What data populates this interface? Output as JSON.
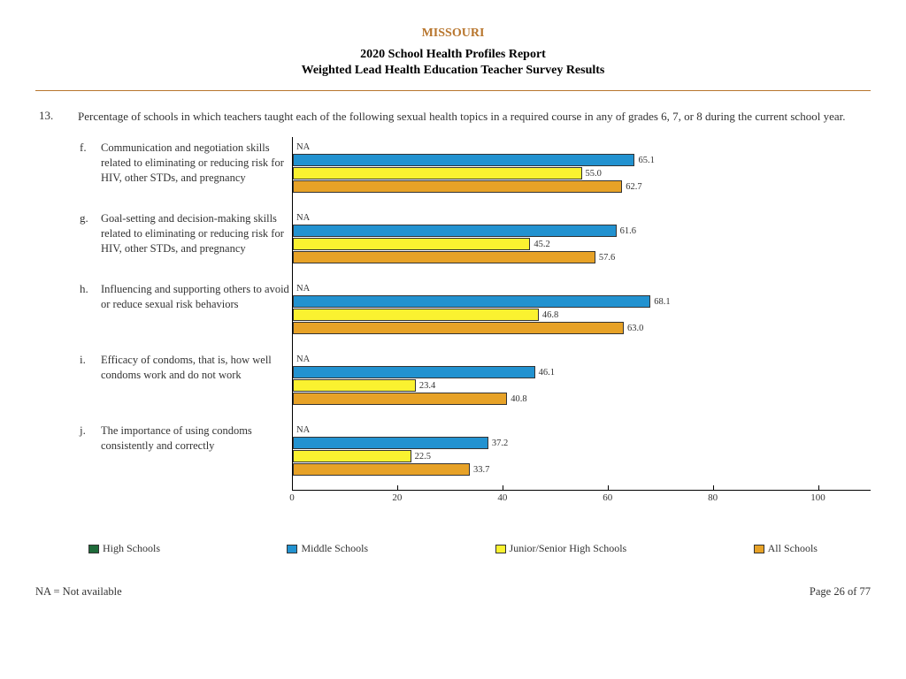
{
  "state": "MISSOURI",
  "state_color": "#b8762e",
  "report_title": "2020 School Health Profiles Report",
  "subtitle": "Weighted Lead Health Education Teacher Survey Results",
  "divider_color": "#b8762e",
  "question_number": "13.",
  "question_text": "Percentage of schools in which teachers taught each of the following sexual health topics in a required course in any of grades 6, 7, or 8 during the current school year.",
  "na_text": "NA",
  "footnote": "NA = Not available",
  "page_label": "Page 26 of 77",
  "scale_max": 110,
  "ticks": [
    0,
    20,
    40,
    60,
    80,
    100
  ],
  "series": [
    {
      "name": "High Schools",
      "color": "#1f6b3a"
    },
    {
      "name": "Middle Schools",
      "color": "#2292d0"
    },
    {
      "name": "Junior/Senior High Schools",
      "color": "#faf230"
    },
    {
      "name": "All Schools",
      "color": "#e7a227"
    }
  ],
  "items": [
    {
      "letter": "f.",
      "text": "Communication and negotiation skills related to eliminating or reducing risk for HIV, other STDs, and pregnancy",
      "values": [
        null,
        65.1,
        55.0,
        62.7
      ]
    },
    {
      "letter": "g.",
      "text": "Goal-setting and decision-making skills related to eliminating or reducing risk for HIV, other STDs, and pregnancy",
      "values": [
        null,
        61.6,
        45.2,
        57.6
      ]
    },
    {
      "letter": "h.",
      "text": "Influencing and supporting others to avoid or reduce sexual risk behaviors",
      "values": [
        null,
        68.1,
        46.8,
        63.0
      ]
    },
    {
      "letter": "i.",
      "text": "Efficacy of condoms, that is, how well condoms work and do not work",
      "values": [
        null,
        46.1,
        23.4,
        40.8
      ]
    },
    {
      "letter": "j.",
      "text": "The importance of using condoms consistently and correctly",
      "values": [
        null,
        37.2,
        22.5,
        33.7
      ]
    }
  ]
}
